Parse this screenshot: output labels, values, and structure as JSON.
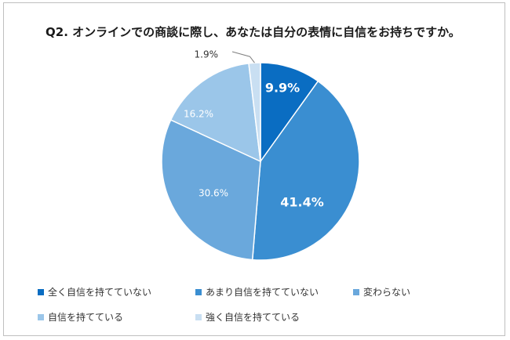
{
  "title": "Q2. オンラインでの商談に際し、あなたは自分の表情に自信をお持ちですか。",
  "chart_data": {
    "type": "pie",
    "title": "Q2. オンラインでの商談に際し、あなたは自分の表情に自信をお持ちですか。",
    "start": "12 o'clock, clockwise",
    "slices": [
      {
        "label": "全く自信を持てていない",
        "value": 9.9,
        "display": "9.9%",
        "color": "#0a6dc2",
        "text_color": "#ffffff",
        "bold": true
      },
      {
        "label": "あまり自信を持てていない",
        "value": 41.4,
        "display": "41.4%",
        "color": "#3a8ed1",
        "text_color": "#ffffff",
        "bold": true
      },
      {
        "label": "変わらない",
        "value": 30.6,
        "display": "30.6%",
        "color": "#6aa8dc",
        "text_color": "#ffffff",
        "bold": false
      },
      {
        "label": "自信を持てている",
        "value": 16.2,
        "display": "16.2%",
        "color": "#9bc6e9",
        "text_color": "#ffffff",
        "bold": false
      },
      {
        "label": "強く自信を持てている",
        "value": 1.9,
        "display": "1.9%",
        "color": "#c9dff2",
        "text_color": "#333333",
        "bold": false
      }
    ],
    "legend_position": "bottom"
  }
}
